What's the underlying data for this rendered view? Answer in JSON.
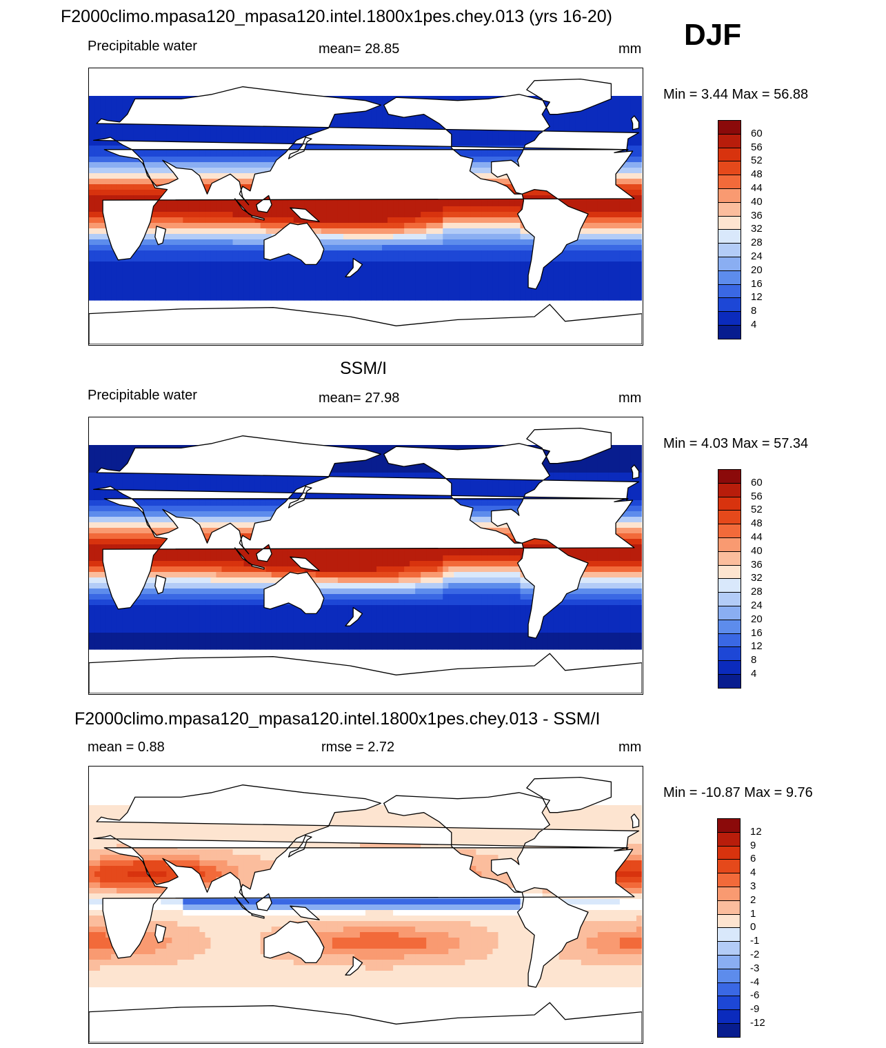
{
  "page": {
    "season": "DJF"
  },
  "panels": [
    {
      "id": "model",
      "title": "F2000climo.mpasa120_mpasa120.intel.1800x1pes.chey.013 (yrs 16-20)",
      "variable": "Precipitable water",
      "stat_text": "mean=  28.85",
      "units": "mm",
      "minmax": "Min =   3.44 Max =  56.88",
      "colorbar": {
        "levels": [
          "60",
          "56",
          "52",
          "48",
          "44",
          "40",
          "36",
          "32",
          "28",
          "24",
          "20",
          "16",
          "12",
          "8",
          "4"
        ],
        "colors": [
          "#8b0a0a",
          "#b81d0b",
          "#d8330e",
          "#e5491b",
          "#f26a3a",
          "#f99a71",
          "#fbbd9d",
          "#fde4d0",
          "#d9e8fb",
          "#b3ccf7",
          "#8aaef2",
          "#5d8cec",
          "#3a68e4",
          "#1d47d6",
          "#0b2bbd",
          "#081d8f"
        ],
        "range": [
          4,
          60
        ]
      }
    },
    {
      "id": "obs",
      "title": "SSM/I",
      "variable": "Precipitable water",
      "stat_text": "mean=  27.98",
      "units": "mm",
      "minmax": "Min =   4.03 Max =  57.34",
      "colorbar": {
        "levels": [
          "60",
          "56",
          "52",
          "48",
          "44",
          "40",
          "36",
          "32",
          "28",
          "24",
          "20",
          "16",
          "12",
          "8",
          "4"
        ],
        "colors": [
          "#8b0a0a",
          "#b81d0b",
          "#d8330e",
          "#e5491b",
          "#f26a3a",
          "#f99a71",
          "#fbbd9d",
          "#fde4d0",
          "#d9e8fb",
          "#b3ccf7",
          "#8aaef2",
          "#5d8cec",
          "#3a68e4",
          "#1d47d6",
          "#0b2bbd",
          "#081d8f"
        ],
        "range": [
          4,
          60
        ]
      }
    },
    {
      "id": "diff",
      "title": "F2000climo.mpasa120_mpasa120.intel.1800x1pes.chey.013 - SSM/I",
      "stat_left": "mean =   0.88",
      "stat_mid": "rmse =   2.72",
      "units": "mm",
      "minmax": "Min = -10.87 Max =   9.76",
      "colorbar": {
        "levels": [
          "12",
          "9",
          "6",
          "4",
          "3",
          "2",
          "1",
          "0",
          "-1",
          "-2",
          "-3",
          "-4",
          "-6",
          "-9",
          "-12"
        ],
        "colors": [
          "#8b0a0a",
          "#b81d0b",
          "#d8330e",
          "#e5491b",
          "#f26a3a",
          "#f99a71",
          "#fbbd9d",
          "#fde4d0",
          "#d9e8fb",
          "#b3ccf7",
          "#8aaef2",
          "#5d8cec",
          "#3a68e4",
          "#1d47d6",
          "#0b2bbd",
          "#081d8f"
        ],
        "range": [
          -12,
          12
        ]
      }
    }
  ]
}
